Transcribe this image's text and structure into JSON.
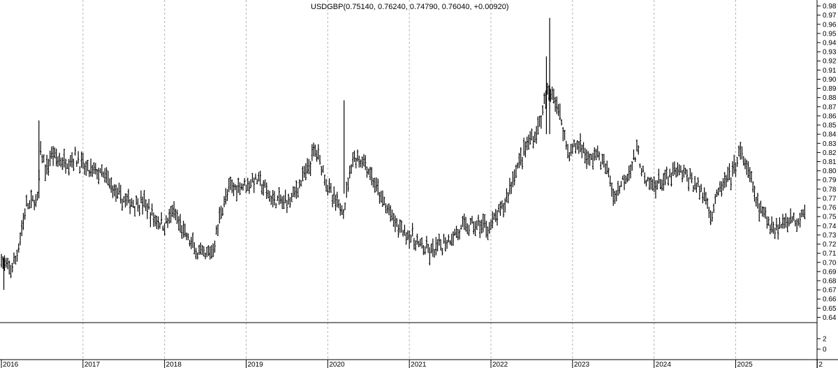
{
  "chart_data": {
    "type": "line",
    "style": "ohlc-bars",
    "title": "USDGBP",
    "ohlc_summary": "(0.75140, 0.76240, 0.74790, 0.76040, +0.00920)",
    "last": {
      "open": 0.7514,
      "high": 0.7624,
      "low": 0.7479,
      "close": 0.7604,
      "change": 0.0092
    },
    "ylim": [
      0.635,
      0.985
    ],
    "yticks": [
      "0.98",
      "0.97",
      "0.96",
      "0.95",
      "0.94",
      "0.93",
      "0.92",
      "0.91",
      "0.90",
      "0.89",
      "0.88",
      "0.87",
      "0.86",
      "0.85",
      "0.84",
      "0.83",
      "0.82",
      "0.81",
      "0.80",
      "0.79",
      "0.78",
      "0.77",
      "0.76",
      "0.75",
      "0.74",
      "0.73",
      "0.72",
      "0.71",
      "0.70",
      "0.69",
      "0.68",
      "0.67",
      "0.66",
      "0.65",
      "0.64"
    ],
    "xlim": [
      2016.0,
      2025.98
    ],
    "xticks": [
      "2016",
      "2017",
      "2018",
      "2019",
      "2020",
      "2021",
      "2022",
      "2023",
      "2024",
      "2025",
      "2"
    ],
    "grid": {
      "vertical": true,
      "horizontal": false,
      "style": "dashed"
    },
    "volume_axis": {
      "ticks": [
        "2",
        "0"
      ]
    },
    "series": [
      {
        "x": [
          2016.0,
          2016.08,
          2016.17,
          2016.3,
          2016.45,
          2016.48,
          2016.55,
          2016.62,
          2016.72,
          2016.8,
          2016.9,
          2017.0,
          2017.05,
          2017.15,
          2017.3,
          2017.45,
          2017.6,
          2017.75,
          2017.85,
          2018.0,
          2018.1,
          2018.25,
          2018.4,
          2018.5,
          2018.6,
          2018.7,
          2018.8,
          2018.95,
          2019.15,
          2019.3,
          2019.45,
          2019.55,
          2019.65,
          2019.75,
          2019.85,
          2019.95,
          2020.05,
          2020.15,
          2020.2,
          2020.3,
          2020.45,
          2020.55,
          2020.65,
          2020.75,
          2020.85,
          2021.0,
          2021.1,
          2021.25,
          2021.35,
          2021.55,
          2021.7,
          2021.85,
          2022.0,
          2022.15,
          2022.3,
          2022.45,
          2022.55,
          2022.62,
          2022.68,
          2022.75,
          2022.85,
          2022.95,
          2023.1,
          2023.2,
          2023.3,
          2023.45,
          2023.5,
          2023.65,
          2023.8,
          2023.9,
          2024.0,
          2024.15,
          2024.3,
          2024.45,
          2024.55,
          2024.65,
          2024.7,
          2024.8,
          2024.95,
          2025.05,
          2025.15,
          2025.3,
          2025.45,
          2025.55,
          2025.65,
          2025.75,
          2025.85
        ],
        "values": [
          0.705,
          0.69,
          0.7,
          0.76,
          0.77,
          0.82,
          0.8,
          0.82,
          0.81,
          0.81,
          0.815,
          0.805,
          0.8,
          0.8,
          0.79,
          0.77,
          0.765,
          0.765,
          0.75,
          0.74,
          0.755,
          0.73,
          0.71,
          0.705,
          0.715,
          0.76,
          0.78,
          0.785,
          0.79,
          0.77,
          0.765,
          0.77,
          0.785,
          0.8,
          0.825,
          0.8,
          0.77,
          0.76,
          0.76,
          0.815,
          0.81,
          0.79,
          0.77,
          0.755,
          0.74,
          0.73,
          0.72,
          0.71,
          0.715,
          0.73,
          0.74,
          0.74,
          0.74,
          0.76,
          0.8,
          0.83,
          0.84,
          0.86,
          0.88,
          0.89,
          0.86,
          0.82,
          0.83,
          0.81,
          0.82,
          0.795,
          0.77,
          0.795,
          0.82,
          0.785,
          0.785,
          0.79,
          0.8,
          0.79,
          0.78,
          0.77,
          0.75,
          0.78,
          0.795,
          0.82,
          0.8,
          0.755,
          0.74,
          0.74,
          0.75,
          0.745,
          0.76
        ]
      }
    ]
  }
}
